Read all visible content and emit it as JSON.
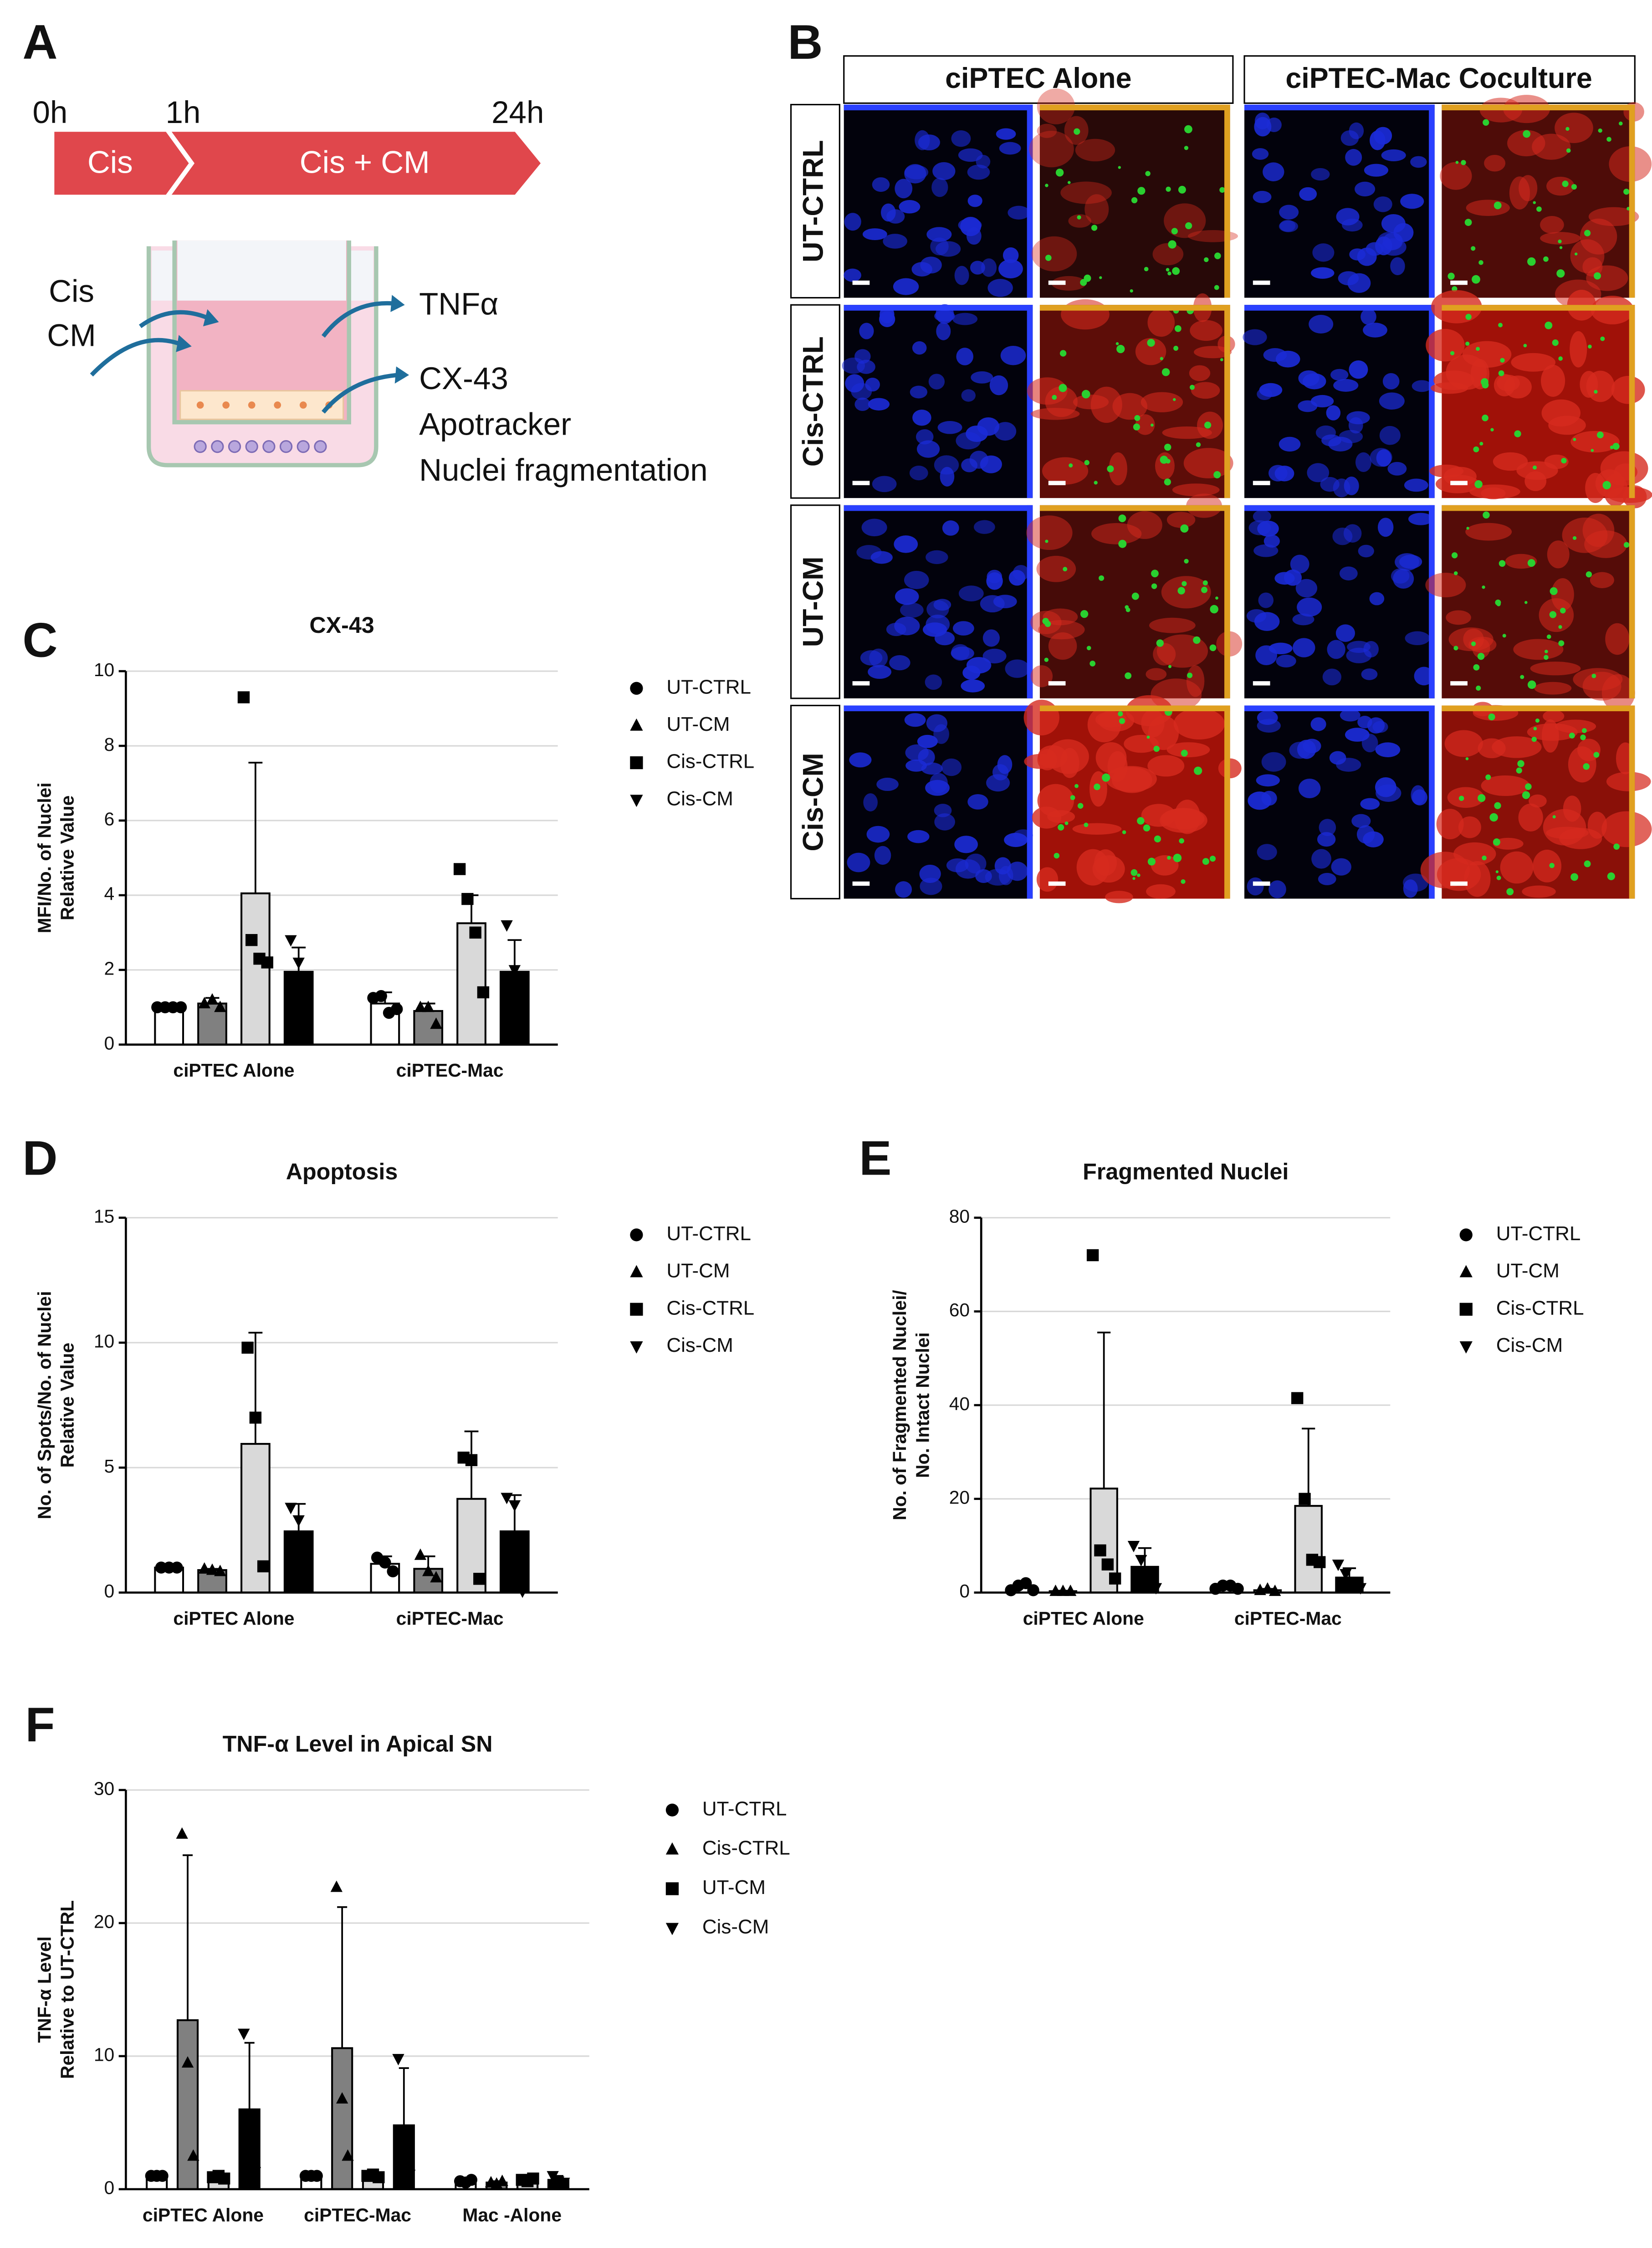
{
  "diagram": {
    "panel": "A",
    "times": [
      "0h",
      "1h",
      "24h"
    ],
    "steps": [
      "Cis",
      "Cis + CM"
    ],
    "inputs": [
      "Cis",
      "CM"
    ],
    "outputs": [
      "TNFα",
      "CX-43",
      "Apotracker",
      "Nuclei fragmentation"
    ]
  },
  "images": {
    "panel": "B",
    "columns": [
      "ciPTEC Alone",
      "ciPTEC-Mac Coculture"
    ],
    "rows": [
      "UT-CTRL",
      "Cis-CTRL",
      "UT-CM",
      "Cis-CM"
    ]
  },
  "chart_data": [
    {
      "type": "bar",
      "panel": "C",
      "title": "CX-43",
      "ylabel": [
        "MFI/No. of Nuclei",
        "Relative Value"
      ],
      "categories": [
        "ciPTEC Alone",
        "ciPTEC-Mac"
      ],
      "ylim": [
        0,
        10
      ],
      "yticks": [
        0,
        2,
        4,
        6,
        8,
        10
      ],
      "grid": true,
      "series": [
        {
          "name": "UT-CTRL",
          "color": "#ffffff",
          "marker": "circle",
          "values": [
            1.0,
            1.1
          ],
          "errors": [
            0.05,
            0.3
          ],
          "points": [
            [
              1,
              1,
              1,
              1
            ],
            [
              1.25,
              1.3,
              0.85,
              0.95
            ]
          ]
        },
        {
          "name": "UT-CM",
          "color": "#808080",
          "marker": "triangle",
          "values": [
            1.1,
            0.9
          ],
          "errors": [
            0.15,
            0.2
          ],
          "points": [
            [
              1.1,
              1.2,
              1.0
            ],
            [
              1.0,
              1.0,
              0.55
            ]
          ]
        },
        {
          "name": "Cis-CTRL",
          "color": "#d9d9d9",
          "marker": "square",
          "values": [
            4.05,
            3.25
          ],
          "errors": [
            3.5,
            0.75
          ],
          "points": [
            [
              9.3,
              2.8,
              2.3,
              2.2
            ],
            [
              4.7,
              3.9,
              3.0,
              1.4
            ]
          ]
        },
        {
          "name": "Cis-CM",
          "color": "#000000",
          "marker": "triangle-down",
          "values": [
            1.95,
            1.95
          ],
          "errors": [
            0.65,
            0.85
          ],
          "points": [
            [
              2.8,
              2.2,
              0.85
            ],
            [
              3.2,
              2.0,
              0.65
            ]
          ]
        }
      ]
    },
    {
      "type": "bar",
      "panel": "D",
      "title": "Apoptosis",
      "ylabel": [
        "No. of Spots/No. of Nuclei",
        "Relative Value"
      ],
      "categories": [
        "ciPTEC Alone",
        "ciPTEC-Mac"
      ],
      "ylim": [
        0,
        15
      ],
      "yticks": [
        0,
        5,
        10,
        15
      ],
      "grid": true,
      "series": [
        {
          "name": "UT-CTRL",
          "color": "#ffffff",
          "marker": "circle",
          "values": [
            1.0,
            1.15
          ],
          "errors": [
            0.02,
            0.3
          ],
          "points": [
            [
              1,
              1,
              1
            ],
            [
              1.4,
              1.2,
              0.85
            ]
          ]
        },
        {
          "name": "UT-CM",
          "color": "#808080",
          "marker": "triangle",
          "values": [
            0.9,
            0.95
          ],
          "errors": [
            0.05,
            0.5
          ],
          "points": [
            [
              0.95,
              0.9,
              0.85
            ],
            [
              1.5,
              0.85,
              0.6
            ]
          ]
        },
        {
          "name": "Cis-CTRL",
          "color": "#d9d9d9",
          "marker": "square",
          "values": [
            5.95,
            3.75
          ],
          "errors": [
            4.45,
            2.7
          ],
          "points": [
            [
              9.8,
              7.0,
              1.05
            ],
            [
              5.4,
              5.3,
              0.55
            ]
          ]
        },
        {
          "name": "Cis-CM",
          "color": "#000000",
          "marker": "triangle-down",
          "values": [
            2.45,
            2.45
          ],
          "errors": [
            1.1,
            1.45
          ],
          "points": [
            [
              3.4,
              2.9,
              1.05
            ],
            [
              3.8,
              3.5,
              0.05
            ]
          ]
        }
      ]
    },
    {
      "type": "bar",
      "panel": "E",
      "title": "Fragmented Nuclei",
      "ylabel": [
        "No. of Fragmented Nuclei/",
        "No. Intact Nuclei"
      ],
      "categories": [
        "ciPTEC Alone",
        "ciPTEC-Mac"
      ],
      "ylim": [
        0,
        80
      ],
      "yticks": [
        0,
        20,
        40,
        60,
        80
      ],
      "grid": true,
      "series": [
        {
          "name": "UT-CTRL",
          "color": "#ffffff",
          "marker": "circle",
          "values": [
            1.0,
            1.2
          ],
          "errors": [
            0.5,
            0.4
          ],
          "points": [
            [
              0.5,
              1.5,
              2.0,
              0.5
            ],
            [
              0.8,
              1.5,
              1.5,
              0.8
            ]
          ]
        },
        {
          "name": "UT-CM",
          "color": "#808080",
          "marker": "triangle",
          "values": [
            0.3,
            0.5
          ],
          "errors": [
            0.1,
            0.3
          ],
          "points": [
            [
              0.3,
              0.3,
              0.3
            ],
            [
              0.5,
              0.8,
              0.3
            ]
          ]
        },
        {
          "name": "Cis-CTRL",
          "color": "#d9d9d9",
          "marker": "square",
          "values": [
            22.2,
            18.5
          ],
          "errors": [
            33.3,
            16.5
          ],
          "points": [
            [
              72,
              9,
              6,
              3
            ],
            [
              41.5,
              20,
              7,
              6.5
            ]
          ]
        },
        {
          "name": "Cis-CM",
          "color": "#000000",
          "marker": "triangle-down",
          "values": [
            5.5,
            3.2
          ],
          "errors": [
            4,
            2
          ],
          "points": [
            [
              10,
              7,
              4,
              1
            ],
            [
              6,
              4,
              2,
              1
            ]
          ]
        }
      ]
    },
    {
      "type": "bar",
      "panel": "F",
      "title": "TNF-α Level in Apical SN",
      "ylabel": [
        "TNF-α Level",
        "Relative to UT-CTRL"
      ],
      "categories": [
        "ciPTEC Alone",
        "ciPTEC-Mac",
        "Mac -Alone"
      ],
      "ylim": [
        0,
        30
      ],
      "yticks": [
        0,
        10,
        20,
        30
      ],
      "grid": true,
      "series": [
        {
          "name": "UT-CTRL",
          "color": "#ffffff",
          "marker": "circle",
          "values": [
            1.0,
            1.0,
            0.6
          ],
          "errors": [
            0.1,
            0.1,
            0.1
          ],
          "points": [
            [
              1,
              1,
              1
            ],
            [
              1,
              1,
              1
            ],
            [
              0.6,
              0.5,
              0.7
            ]
          ]
        },
        {
          "name": "Cis-CTRL",
          "color": "#808080",
          "marker": "triangle",
          "values": [
            12.7,
            10.6,
            0.5
          ],
          "errors": [
            12.4,
            10.6,
            0.1
          ],
          "points": [
            [
              26.7,
              9.5,
              2.5
            ],
            [
              22.7,
              6.8,
              2.5
            ],
            [
              0.5,
              0.4,
              0.6
            ]
          ]
        },
        {
          "name": "UT-CM",
          "color": "#d9d9d9",
          "marker": "square",
          "values": [
            0.9,
            1.0,
            0.7
          ],
          "errors": [
            0.1,
            0.1,
            0.1
          ],
          "points": [
            [
              0.9,
              1.0,
              0.8
            ],
            [
              1.0,
              1.1,
              0.9
            ],
            [
              0.7,
              0.6,
              0.8
            ]
          ]
        },
        {
          "name": "Cis-CM",
          "color": "#000000",
          "marker": "triangle-down",
          "values": [
            6.0,
            4.8,
            0.7
          ],
          "errors": [
            5.0,
            4.3,
            0.3
          ],
          "points": [
            [
              11.7,
              5.0,
              1.3
            ],
            [
              9.8,
              3.5,
              1.1
            ],
            [
              1.0,
              0.6,
              0.5
            ]
          ]
        }
      ]
    }
  ]
}
